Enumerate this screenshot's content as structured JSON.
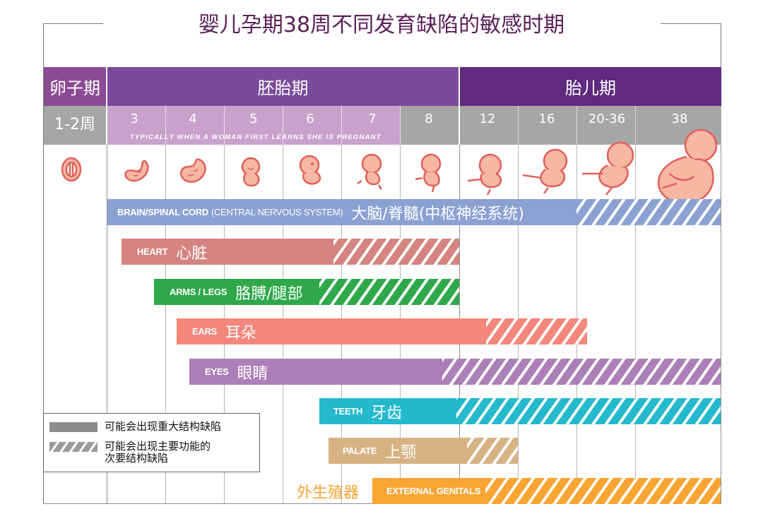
{
  "title": "婴儿孕期38周不同发育缺陷的敏感时期",
  "periods": {
    "ovum": "卵子期",
    "embryonic": "胚胎期",
    "fetal": "胎儿期"
  },
  "weeks": [
    "1-2周",
    "3",
    "4",
    "5",
    "6",
    "7",
    "8",
    "12",
    "16",
    "20-36",
    "38"
  ],
  "pregnancy_note": "TYPICALLY WHEN A WOMAN FIRST LEARNS SHE IS PREGNANT",
  "bars": [
    {
      "en": "BRAIN/SPINAL CORD",
      "en_sub": "(CENTRAL NERVOUS SYSTEM)",
      "cn": "大脑/脊髓(中枢神经系统)",
      "color": "#8aa1d2"
    },
    {
      "en": "HEART",
      "cn": "心脏",
      "color": "#d5847f"
    },
    {
      "en": "ARMS / LEGS",
      "cn": "胳膊/腿部",
      "color": "#2fa84a"
    },
    {
      "en": "EARS",
      "cn": "耳朵",
      "color": "#f3877b"
    },
    {
      "en": "EYES",
      "cn": "眼睛",
      "color": "#ad7fb8"
    },
    {
      "en": "TEETH",
      "cn": "牙齿",
      "color": "#24b9cc"
    },
    {
      "en": "PALATE",
      "cn": "上颚",
      "color": "#d7b384"
    },
    {
      "en": "EXTERNAL GENITALS",
      "cn": "外生殖器",
      "color": "#f8a533"
    }
  ],
  "legend": {
    "major": "可能会出现重大结构缺陷",
    "minor_line1": "可能会出现主要功能的",
    "minor_line2": "次要结构缺陷"
  },
  "colors": {
    "title": "#5a1f57",
    "ovum_header": "#8c4a95",
    "embryonic_header": "#7b4a9b",
    "fetal_header": "#5f2a80",
    "week_gray": "#a6a6a6",
    "week_light_purple": "#c8a2cc",
    "embryo_fill": "#f7b7a3",
    "embryo_stroke": "#e0605a"
  }
}
